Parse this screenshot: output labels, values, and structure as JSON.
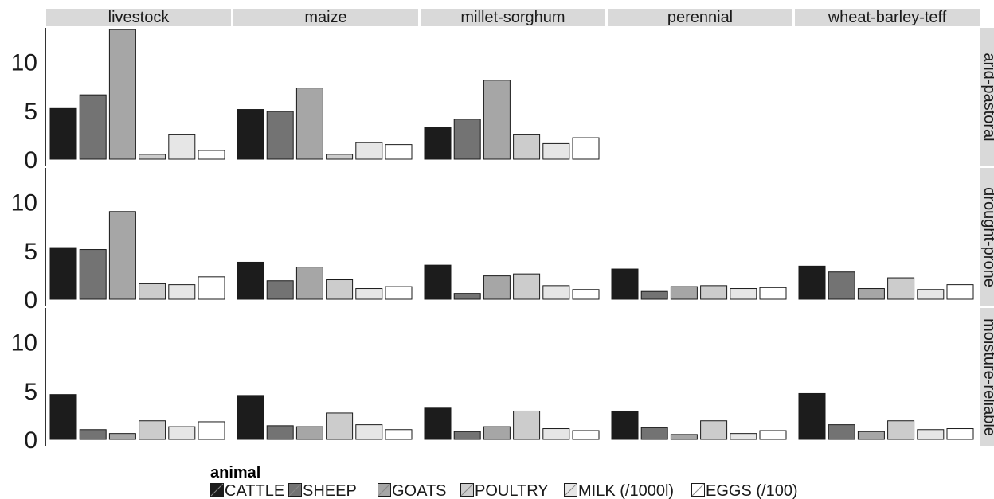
{
  "chart_data": {
    "type": "bar",
    "facet_columns": [
      "livestock",
      "maize",
      "millet-sorghum",
      "perennial",
      "wheat-barley-teff"
    ],
    "facet_rows": [
      "arid-pastoral",
      "drought-prone",
      "moisture-reliable"
    ],
    "categories": [
      "CATTLE",
      "SHEEP",
      "GOATS",
      "POULTRY",
      "MILK (/1000l)",
      "EGGS (/100)"
    ],
    "y_ticks": [
      "0",
      "5",
      "10"
    ],
    "ylim": [
      0,
      13.8
    ],
    "legend": {
      "title": "animal",
      "items": [
        "CATTLE",
        "SHEEP",
        "GOATS",
        "POULTRY",
        "MILK (/1000l)",
        "EGGS (/100)"
      ],
      "placement": "bottom"
    },
    "colors": [
      "#1c1c1c",
      "#737373",
      "#a6a6a6",
      "#cccccc",
      "#e6e6e6",
      "#ffffff"
    ],
    "panels": [
      [
        [
          5.2,
          6.6,
          13.3,
          0.5,
          2.5,
          0.9
        ],
        [
          5.1,
          4.9,
          7.3,
          0.5,
          1.7,
          1.5
        ],
        [
          3.3,
          4.1,
          8.1,
          2.5,
          1.6,
          2.2
        ],
        null,
        null
      ],
      [
        [
          5.3,
          5.1,
          9.0,
          1.6,
          1.5,
          2.3
        ],
        [
          3.8,
          1.9,
          3.3,
          2.0,
          1.1,
          1.3
        ],
        [
          3.5,
          0.6,
          2.4,
          2.6,
          1.4,
          1.0
        ],
        [
          3.1,
          0.8,
          1.3,
          1.4,
          1.1,
          1.2
        ],
        [
          3.4,
          2.8,
          1.1,
          2.2,
          1.0,
          1.5
        ]
      ],
      [
        [
          4.6,
          1.0,
          0.6,
          1.9,
          1.3,
          1.8
        ],
        [
          4.5,
          1.4,
          1.3,
          2.7,
          1.5,
          1.0
        ],
        [
          3.2,
          0.8,
          1.3,
          2.9,
          1.1,
          0.9
        ],
        [
          2.9,
          1.2,
          0.5,
          1.9,
          0.6,
          0.9
        ],
        [
          4.7,
          1.5,
          0.8,
          1.9,
          1.0,
          1.1
        ]
      ]
    ]
  }
}
